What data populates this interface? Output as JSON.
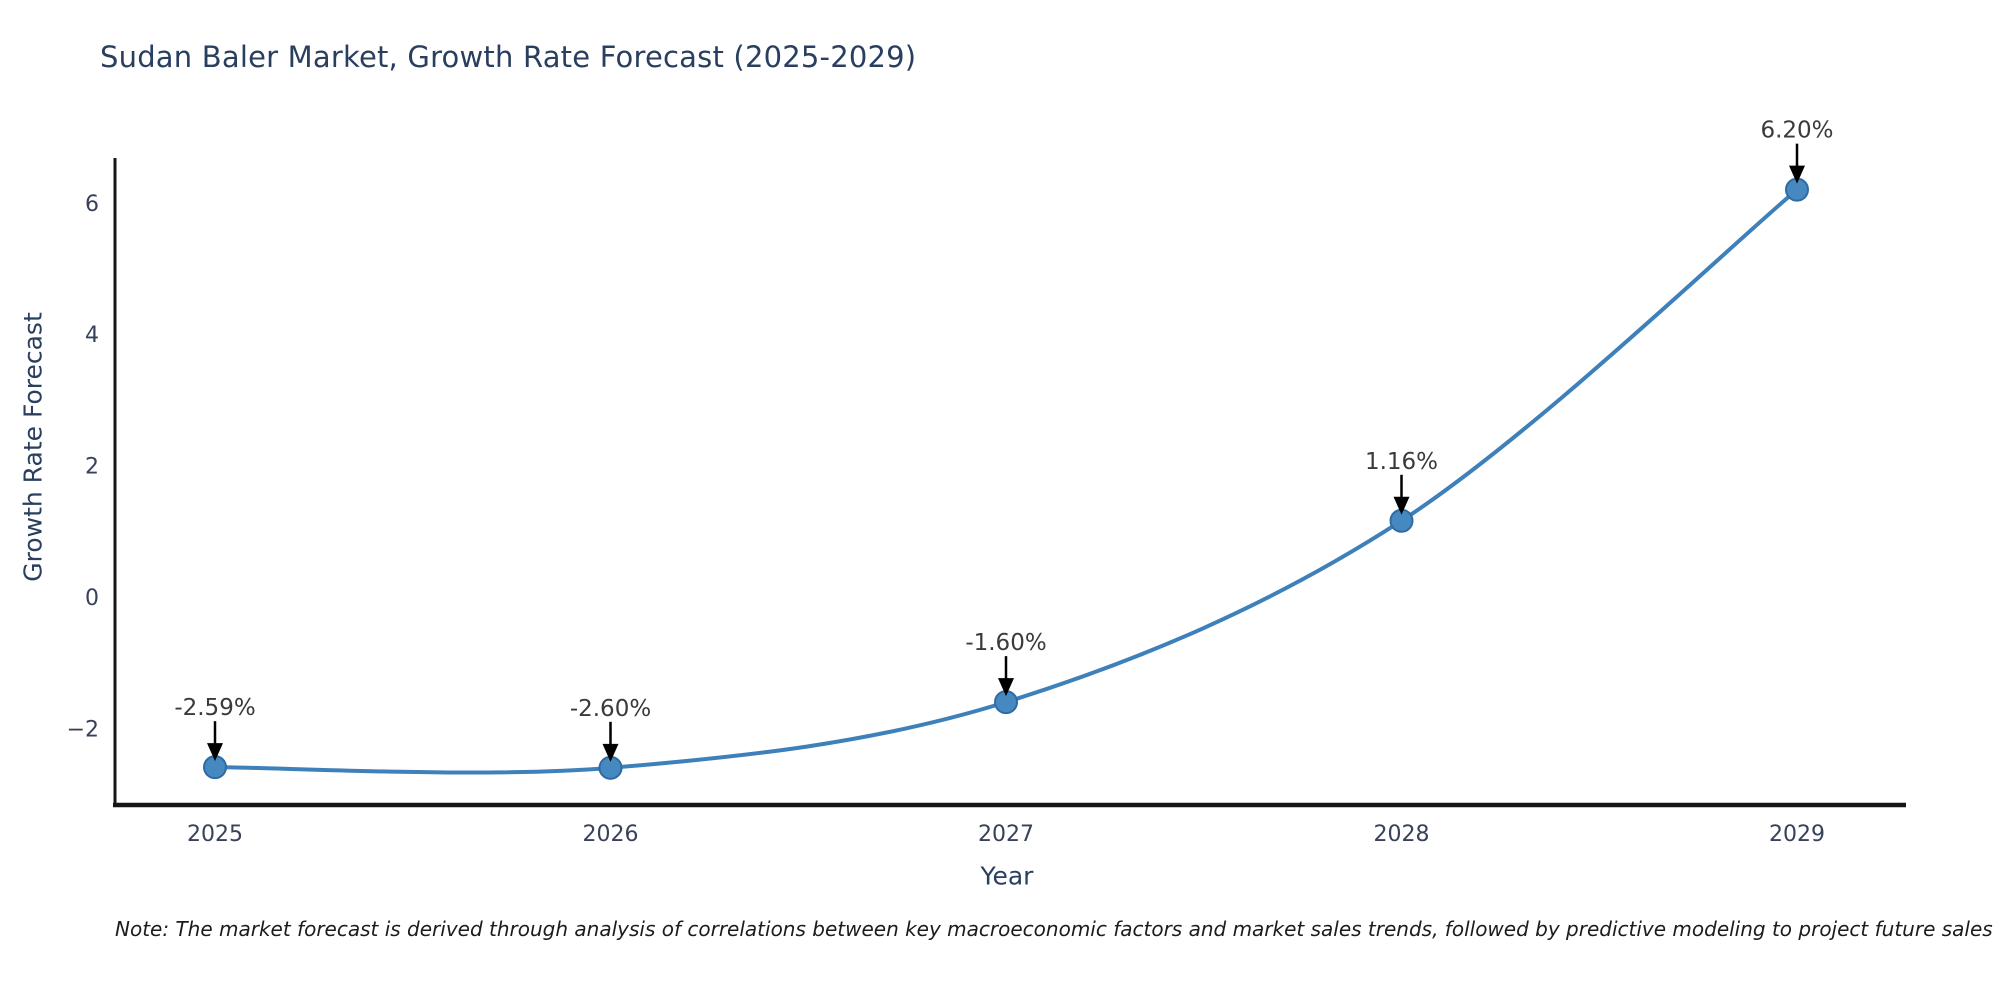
{
  "page": {
    "background_color": "#ffffff"
  },
  "chart_data": {
    "type": "line",
    "title": "Sudan Baler Market, Growth Rate Forecast (2025-2029)",
    "xlabel": "Year",
    "ylabel": "Growth Rate Forecast",
    "categories": [
      "2025",
      "2026",
      "2027",
      "2028",
      "2029"
    ],
    "series": [
      {
        "name": "Growth Rate Forecast",
        "values": [
          -2.59,
          -2.6,
          -1.6,
          1.16,
          6.2
        ]
      }
    ],
    "point_labels": [
      "-2.59%",
      "-2.60%",
      "-1.60%",
      "1.16%",
      "6.20%"
    ],
    "ytick_values": [
      6,
      4,
      2,
      0,
      -2
    ],
    "ytick_labels": [
      "6",
      "4",
      "2",
      "0",
      "−2"
    ],
    "ylim": [
      -3.1,
      6.9
    ],
    "line_shape": "spline",
    "grid": false,
    "legend_position": "none",
    "annotations_have_arrows": true,
    "style": {
      "line_color": "#3e80b9",
      "marker_fill": "#4688c0",
      "marker_edge": "#2f6ba3",
      "axis_line_color": "#161616",
      "tick_label_color": "#37425a",
      "annotation_text_color": "#3a3a3a",
      "arrow_color": "#000000",
      "title_color": "#2a3f5f"
    }
  },
  "note": {
    "text": "Note: The market forecast is derived through analysis of correlations between key macroeconomic factors and market sales trends, followed by predictive modeling to project future sales"
  }
}
